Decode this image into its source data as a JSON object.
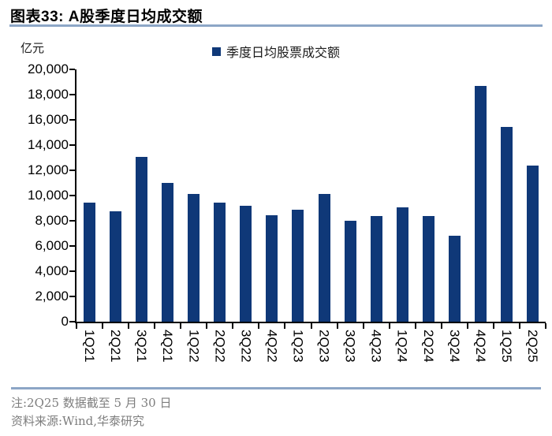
{
  "header": {
    "title": "图表33: A股季度日均成交额"
  },
  "chart": {
    "unit_label": "亿元",
    "legend_label": "季度日均股票成交额"
  },
  "chart_data": {
    "type": "bar",
    "title": "A股季度日均成交额",
    "ylabel": "亿元",
    "legend": [
      "季度日均股票成交额"
    ],
    "legend_position": "top",
    "grid": false,
    "categories": [
      "1Q21",
      "2Q21",
      "3Q21",
      "4Q21",
      "1Q22",
      "2Q22",
      "3Q22",
      "4Q22",
      "1Q23",
      "2Q23",
      "3Q23",
      "4Q23",
      "1Q24",
      "2Q24",
      "3Q24",
      "4Q24",
      "1Q25",
      "2Q25"
    ],
    "values": [
      9450,
      8750,
      13050,
      11000,
      10100,
      9450,
      9200,
      8450,
      8850,
      10150,
      8000,
      8400,
      9050,
      8400,
      6800,
      18700,
      15450,
      12400
    ],
    "ylim": [
      0,
      20000
    ],
    "ytick_step": 2000,
    "ytick_labels": [
      "0",
      "2,000",
      "4,000",
      "6,000",
      "8,000",
      "10,000",
      "12,000",
      "14,000",
      "16,000",
      "18,000",
      "20,000"
    ],
    "bar_color": "#0F3878"
  },
  "footer": {
    "note": "注:2Q25 数据截至 5 月 30 日",
    "source": "资料来源:Wind,华泰研究"
  },
  "colors": {
    "bar": "#0F3878",
    "rule": "#8CA6C6",
    "note_text": "#7D7D7D"
  }
}
